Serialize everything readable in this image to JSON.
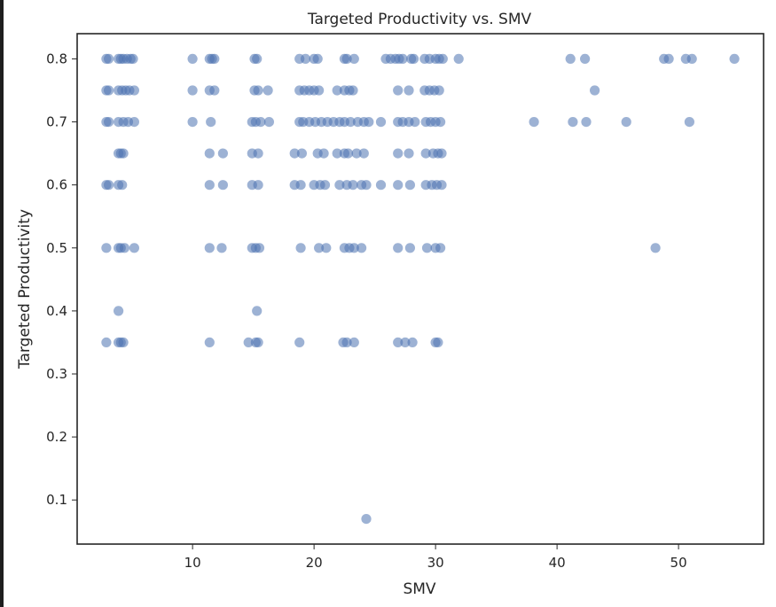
{
  "chart_data": {
    "type": "scatter",
    "title": "Targeted Productivity vs. SMV",
    "xlabel": "SMV",
    "ylabel": "Targeted Productivity",
    "xlim": [
      0.5,
      57.0
    ],
    "ylim": [
      0.03,
      0.84
    ],
    "xticks": [
      10,
      20,
      30,
      40,
      50
    ],
    "xtick_labels": [
      "10",
      "20",
      "30",
      "40",
      "50"
    ],
    "yticks": [
      0.1,
      0.2,
      0.3,
      0.4,
      0.5,
      0.6,
      0.7,
      0.8
    ],
    "ytick_labels": [
      "0.1",
      "0.2",
      "0.3",
      "0.4",
      "0.5",
      "0.6",
      "0.7",
      "0.8"
    ],
    "grid": false,
    "legend": "none",
    "color": "#4c72b0",
    "alpha": 0.55,
    "points": [
      {
        "x": 2.9,
        "y": 0.8
      },
      {
        "x": 3.1,
        "y": 0.8
      },
      {
        "x": 3.9,
        "y": 0.8
      },
      {
        "x": 4.1,
        "y": 0.8
      },
      {
        "x": 4.3,
        "y": 0.8
      },
      {
        "x": 4.6,
        "y": 0.8
      },
      {
        "x": 4.9,
        "y": 0.8
      },
      {
        "x": 5.1,
        "y": 0.8
      },
      {
        "x": 10.0,
        "y": 0.8
      },
      {
        "x": 11.4,
        "y": 0.8
      },
      {
        "x": 11.6,
        "y": 0.8
      },
      {
        "x": 11.8,
        "y": 0.8
      },
      {
        "x": 15.1,
        "y": 0.8
      },
      {
        "x": 15.3,
        "y": 0.8
      },
      {
        "x": 18.8,
        "y": 0.8
      },
      {
        "x": 19.3,
        "y": 0.8
      },
      {
        "x": 20.0,
        "y": 0.8
      },
      {
        "x": 20.3,
        "y": 0.8
      },
      {
        "x": 22.5,
        "y": 0.8
      },
      {
        "x": 22.7,
        "y": 0.8
      },
      {
        "x": 23.3,
        "y": 0.8
      },
      {
        "x": 25.9,
        "y": 0.8
      },
      {
        "x": 26.3,
        "y": 0.8
      },
      {
        "x": 26.7,
        "y": 0.8
      },
      {
        "x": 27.0,
        "y": 0.8
      },
      {
        "x": 27.3,
        "y": 0.8
      },
      {
        "x": 28.0,
        "y": 0.8
      },
      {
        "x": 28.2,
        "y": 0.8
      },
      {
        "x": 29.1,
        "y": 0.8
      },
      {
        "x": 29.5,
        "y": 0.8
      },
      {
        "x": 30.0,
        "y": 0.8
      },
      {
        "x": 30.3,
        "y": 0.8
      },
      {
        "x": 30.6,
        "y": 0.8
      },
      {
        "x": 31.9,
        "y": 0.8
      },
      {
        "x": 41.1,
        "y": 0.8
      },
      {
        "x": 42.3,
        "y": 0.8
      },
      {
        "x": 48.8,
        "y": 0.8
      },
      {
        "x": 49.2,
        "y": 0.8
      },
      {
        "x": 50.6,
        "y": 0.8
      },
      {
        "x": 51.1,
        "y": 0.8
      },
      {
        "x": 54.6,
        "y": 0.8
      },
      {
        "x": 2.9,
        "y": 0.75
      },
      {
        "x": 3.1,
        "y": 0.75
      },
      {
        "x": 3.9,
        "y": 0.75
      },
      {
        "x": 4.2,
        "y": 0.75
      },
      {
        "x": 4.5,
        "y": 0.75
      },
      {
        "x": 4.8,
        "y": 0.75
      },
      {
        "x": 5.2,
        "y": 0.75
      },
      {
        "x": 10.0,
        "y": 0.75
      },
      {
        "x": 11.4,
        "y": 0.75
      },
      {
        "x": 11.8,
        "y": 0.75
      },
      {
        "x": 15.1,
        "y": 0.75
      },
      {
        "x": 15.4,
        "y": 0.75
      },
      {
        "x": 16.2,
        "y": 0.75
      },
      {
        "x": 18.8,
        "y": 0.75
      },
      {
        "x": 19.2,
        "y": 0.75
      },
      {
        "x": 19.6,
        "y": 0.75
      },
      {
        "x": 20.0,
        "y": 0.75
      },
      {
        "x": 20.4,
        "y": 0.75
      },
      {
        "x": 21.9,
        "y": 0.75
      },
      {
        "x": 22.5,
        "y": 0.75
      },
      {
        "x": 22.9,
        "y": 0.75
      },
      {
        "x": 23.2,
        "y": 0.75
      },
      {
        "x": 26.9,
        "y": 0.75
      },
      {
        "x": 27.8,
        "y": 0.75
      },
      {
        "x": 29.1,
        "y": 0.75
      },
      {
        "x": 29.5,
        "y": 0.75
      },
      {
        "x": 29.9,
        "y": 0.75
      },
      {
        "x": 30.3,
        "y": 0.75
      },
      {
        "x": 43.1,
        "y": 0.75
      },
      {
        "x": 2.9,
        "y": 0.7
      },
      {
        "x": 3.1,
        "y": 0.7
      },
      {
        "x": 3.9,
        "y": 0.7
      },
      {
        "x": 4.3,
        "y": 0.7
      },
      {
        "x": 4.7,
        "y": 0.7
      },
      {
        "x": 5.2,
        "y": 0.7
      },
      {
        "x": 10.0,
        "y": 0.7
      },
      {
        "x": 11.5,
        "y": 0.7
      },
      {
        "x": 14.9,
        "y": 0.7
      },
      {
        "x": 15.2,
        "y": 0.7
      },
      {
        "x": 15.6,
        "y": 0.7
      },
      {
        "x": 16.3,
        "y": 0.7
      },
      {
        "x": 18.8,
        "y": 0.7
      },
      {
        "x": 19.1,
        "y": 0.7
      },
      {
        "x": 19.6,
        "y": 0.7
      },
      {
        "x": 20.1,
        "y": 0.7
      },
      {
        "x": 20.6,
        "y": 0.7
      },
      {
        "x": 21.1,
        "y": 0.7
      },
      {
        "x": 21.6,
        "y": 0.7
      },
      {
        "x": 22.1,
        "y": 0.7
      },
      {
        "x": 22.5,
        "y": 0.7
      },
      {
        "x": 23.0,
        "y": 0.7
      },
      {
        "x": 23.6,
        "y": 0.7
      },
      {
        "x": 24.1,
        "y": 0.7
      },
      {
        "x": 24.5,
        "y": 0.7
      },
      {
        "x": 25.5,
        "y": 0.7
      },
      {
        "x": 26.9,
        "y": 0.7
      },
      {
        "x": 27.3,
        "y": 0.7
      },
      {
        "x": 27.8,
        "y": 0.7
      },
      {
        "x": 28.3,
        "y": 0.7
      },
      {
        "x": 29.2,
        "y": 0.7
      },
      {
        "x": 29.6,
        "y": 0.7
      },
      {
        "x": 30.0,
        "y": 0.7
      },
      {
        "x": 30.4,
        "y": 0.7
      },
      {
        "x": 38.1,
        "y": 0.7
      },
      {
        "x": 41.3,
        "y": 0.7
      },
      {
        "x": 42.4,
        "y": 0.7
      },
      {
        "x": 45.7,
        "y": 0.7
      },
      {
        "x": 50.9,
        "y": 0.7
      },
      {
        "x": 3.9,
        "y": 0.65
      },
      {
        "x": 4.1,
        "y": 0.65
      },
      {
        "x": 4.3,
        "y": 0.65
      },
      {
        "x": 11.4,
        "y": 0.65
      },
      {
        "x": 12.5,
        "y": 0.65
      },
      {
        "x": 14.9,
        "y": 0.65
      },
      {
        "x": 15.4,
        "y": 0.65
      },
      {
        "x": 18.4,
        "y": 0.65
      },
      {
        "x": 19.0,
        "y": 0.65
      },
      {
        "x": 20.3,
        "y": 0.65
      },
      {
        "x": 20.8,
        "y": 0.65
      },
      {
        "x": 21.9,
        "y": 0.65
      },
      {
        "x": 22.5,
        "y": 0.65
      },
      {
        "x": 22.8,
        "y": 0.65
      },
      {
        "x": 23.5,
        "y": 0.65
      },
      {
        "x": 24.1,
        "y": 0.65
      },
      {
        "x": 26.9,
        "y": 0.65
      },
      {
        "x": 27.8,
        "y": 0.65
      },
      {
        "x": 29.2,
        "y": 0.65
      },
      {
        "x": 29.8,
        "y": 0.65
      },
      {
        "x": 30.2,
        "y": 0.65
      },
      {
        "x": 30.5,
        "y": 0.65
      },
      {
        "x": 2.9,
        "y": 0.6
      },
      {
        "x": 3.1,
        "y": 0.6
      },
      {
        "x": 3.9,
        "y": 0.6
      },
      {
        "x": 4.2,
        "y": 0.6
      },
      {
        "x": 11.4,
        "y": 0.6
      },
      {
        "x": 12.5,
        "y": 0.6
      },
      {
        "x": 14.9,
        "y": 0.6
      },
      {
        "x": 15.4,
        "y": 0.6
      },
      {
        "x": 18.4,
        "y": 0.6
      },
      {
        "x": 18.9,
        "y": 0.6
      },
      {
        "x": 20.0,
        "y": 0.6
      },
      {
        "x": 20.5,
        "y": 0.6
      },
      {
        "x": 20.9,
        "y": 0.6
      },
      {
        "x": 22.1,
        "y": 0.6
      },
      {
        "x": 22.7,
        "y": 0.6
      },
      {
        "x": 23.2,
        "y": 0.6
      },
      {
        "x": 23.9,
        "y": 0.6
      },
      {
        "x": 24.3,
        "y": 0.6
      },
      {
        "x": 25.5,
        "y": 0.6
      },
      {
        "x": 26.9,
        "y": 0.6
      },
      {
        "x": 27.9,
        "y": 0.6
      },
      {
        "x": 29.2,
        "y": 0.6
      },
      {
        "x": 29.7,
        "y": 0.6
      },
      {
        "x": 30.1,
        "y": 0.6
      },
      {
        "x": 30.5,
        "y": 0.6
      },
      {
        "x": 2.9,
        "y": 0.5
      },
      {
        "x": 3.9,
        "y": 0.5
      },
      {
        "x": 4.1,
        "y": 0.5
      },
      {
        "x": 4.4,
        "y": 0.5
      },
      {
        "x": 5.2,
        "y": 0.5
      },
      {
        "x": 11.4,
        "y": 0.5
      },
      {
        "x": 12.4,
        "y": 0.5
      },
      {
        "x": 14.9,
        "y": 0.5
      },
      {
        "x": 15.2,
        "y": 0.5
      },
      {
        "x": 15.5,
        "y": 0.5
      },
      {
        "x": 18.9,
        "y": 0.5
      },
      {
        "x": 20.4,
        "y": 0.5
      },
      {
        "x": 21.0,
        "y": 0.5
      },
      {
        "x": 22.5,
        "y": 0.5
      },
      {
        "x": 22.9,
        "y": 0.5
      },
      {
        "x": 23.3,
        "y": 0.5
      },
      {
        "x": 23.9,
        "y": 0.5
      },
      {
        "x": 26.9,
        "y": 0.5
      },
      {
        "x": 27.9,
        "y": 0.5
      },
      {
        "x": 29.3,
        "y": 0.5
      },
      {
        "x": 30.0,
        "y": 0.5
      },
      {
        "x": 30.4,
        "y": 0.5
      },
      {
        "x": 48.1,
        "y": 0.5
      },
      {
        "x": 3.9,
        "y": 0.4
      },
      {
        "x": 15.3,
        "y": 0.4
      },
      {
        "x": 2.9,
        "y": 0.35
      },
      {
        "x": 3.9,
        "y": 0.35
      },
      {
        "x": 4.1,
        "y": 0.35
      },
      {
        "x": 4.3,
        "y": 0.35
      },
      {
        "x": 11.4,
        "y": 0.35
      },
      {
        "x": 14.6,
        "y": 0.35
      },
      {
        "x": 15.2,
        "y": 0.35
      },
      {
        "x": 15.4,
        "y": 0.35
      },
      {
        "x": 18.8,
        "y": 0.35
      },
      {
        "x": 22.4,
        "y": 0.35
      },
      {
        "x": 22.7,
        "y": 0.35
      },
      {
        "x": 23.3,
        "y": 0.35
      },
      {
        "x": 26.9,
        "y": 0.35
      },
      {
        "x": 27.5,
        "y": 0.35
      },
      {
        "x": 28.1,
        "y": 0.35
      },
      {
        "x": 30.0,
        "y": 0.35
      },
      {
        "x": 30.2,
        "y": 0.35
      },
      {
        "x": 24.3,
        "y": 0.07
      }
    ]
  }
}
